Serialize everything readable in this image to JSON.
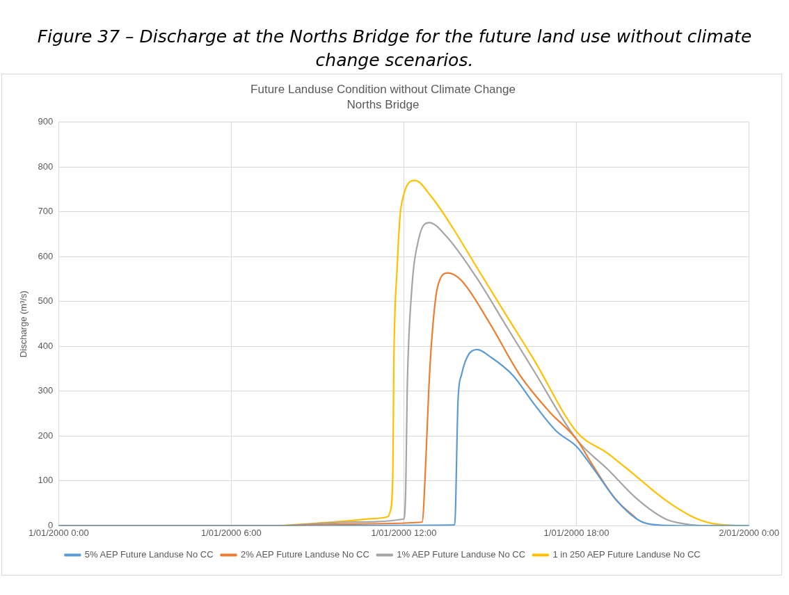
{
  "chart_data": {
    "type": "line",
    "title": "Future Landuse Condition without Climate Change",
    "subtitle": "Norths Bridge",
    "annotations": [
      "Figure 37 – Discharge at the Norths Bridge for the future land use without climate change scenarios."
    ],
    "ylabel": "Discharge (m³/s)",
    "xlim": [
      "2000-01-01T00:00",
      "2000-01-02T00:00"
    ],
    "xticks": [
      {
        "value": "2000-01-01T00:00",
        "label": "1/01/2000 0:00"
      },
      {
        "value": "2000-01-01T06:00",
        "label": "1/01/2000 6:00"
      },
      {
        "value": "2000-01-01T12:00",
        "label": "1/01/2000 12:00"
      },
      {
        "value": "2000-01-01T18:00",
        "label": "1/01/2000 18:00"
      },
      {
        "value": "2000-01-02T00:00",
        "label": "2/01/2000 0:00"
      }
    ],
    "ylim": [
      0,
      900
    ],
    "yticks": [
      0,
      100,
      200,
      300,
      400,
      500,
      600,
      700,
      800,
      900
    ],
    "grid": true,
    "legend": "bottom",
    "marker": "none",
    "line_style": "solid",
    "series": [
      {
        "name": "5% AEP Future Landuse No CC",
        "color": "#5b9bd5",
        "x": [
          "2000-01-01T00:00",
          "2000-01-01T08:00",
          "2000-01-01T12:00",
          "2000-01-01T13:46",
          "2000-01-01T13:53",
          "2000-01-01T14:00",
          "2000-01-01T14:33",
          "2000-01-01T15:00",
          "2000-01-01T15:47",
          "2000-01-01T16:32",
          "2000-01-01T17:18",
          "2000-01-01T18:00",
          "2000-01-01T18:35",
          "2000-01-01T19:21",
          "2000-01-01T20:06",
          "2000-01-01T20:36",
          "2000-01-01T21:39",
          "2000-01-02T00:00"
        ],
        "values": [
          0,
          0,
          1,
          2,
          280,
          336,
          393,
          377,
          336,
          271,
          211,
          177,
          128,
          60,
          15,
          3,
          0,
          0
        ]
      },
      {
        "name": "2% AEP Future Landuse No CC",
        "color": "#ed7d31",
        "x": [
          "2000-01-01T00:00",
          "2000-01-01T07:30",
          "2000-01-01T10:00",
          "2000-01-01T12:38",
          "2000-01-01T12:46",
          "2000-01-01T12:52",
          "2000-01-01T12:58",
          "2000-01-01T13:10",
          "2000-01-01T13:32",
          "2000-01-01T14:00",
          "2000-01-01T15:00",
          "2000-01-01T16:02",
          "2000-01-01T17:03",
          "2000-01-01T18:00",
          "2000-01-01T18:35",
          "2000-01-01T19:21",
          "2000-01-01T20:06"
        ],
        "values": [
          0,
          0,
          4,
          8,
          150,
          304,
          413,
          531,
          564,
          547,
          450,
          336,
          255,
          193,
          133,
          60,
          15
        ]
      },
      {
        "name": "1% AEP Future Landuse No CC",
        "color": "#a5a5a5",
        "x": [
          "2000-01-01T00:00",
          "2000-01-01T07:30",
          "2000-01-01T10:00",
          "2000-01-01T12:00",
          "2000-01-01T12:04",
          "2000-01-01T12:07",
          "2000-01-01T12:16",
          "2000-01-01T12:31",
          "2000-01-01T12:53",
          "2000-01-01T13:29",
          "2000-01-01T14:30",
          "2000-01-01T15:31",
          "2000-01-01T16:32",
          "2000-01-01T18:00",
          "2000-01-01T19:06",
          "2000-01-01T20:06",
          "2000-01-01T21:06",
          "2000-01-01T21:54",
          "2000-01-01T22:40",
          "2000-01-02T00:00"
        ],
        "values": [
          0,
          0,
          8,
          15,
          88,
          304,
          520,
          640,
          676,
          645,
          556,
          450,
          344,
          193,
          125,
          60,
          15,
          3,
          0,
          0
        ]
      },
      {
        "name": "1 in 250 AEP Future Landuse No CC",
        "color": "#ffc000",
        "x": [
          "2000-01-01T00:00",
          "2000-01-01T07:30",
          "2000-01-01T08:22",
          "2000-01-01T09:54",
          "2000-01-01T10:56",
          "2000-01-01T11:26",
          "2000-01-01T11:31",
          "2000-01-01T11:37",
          "2000-01-01T11:39",
          "2000-01-01T11:46",
          "2000-01-01T11:54",
          "2000-01-01T12:23",
          "2000-01-01T12:58",
          "2000-01-01T13:44",
          "2000-01-01T14:30",
          "2000-01-01T15:31",
          "2000-01-01T16:32",
          "2000-01-01T18:00",
          "2000-01-01T19:06",
          "2000-01-01T20:06",
          "2000-01-01T21:06",
          "2000-01-01T22:10",
          "2000-01-01T22:56",
          "2000-01-02T00:00"
        ],
        "values": [
          0,
          0,
          3,
          10,
          16,
          20,
          30,
          114,
          357,
          575,
          710,
          770,
          733,
          661,
          580,
          474,
          369,
          210,
          161,
          109,
          57,
          16,
          3,
          0
        ]
      }
    ]
  }
}
